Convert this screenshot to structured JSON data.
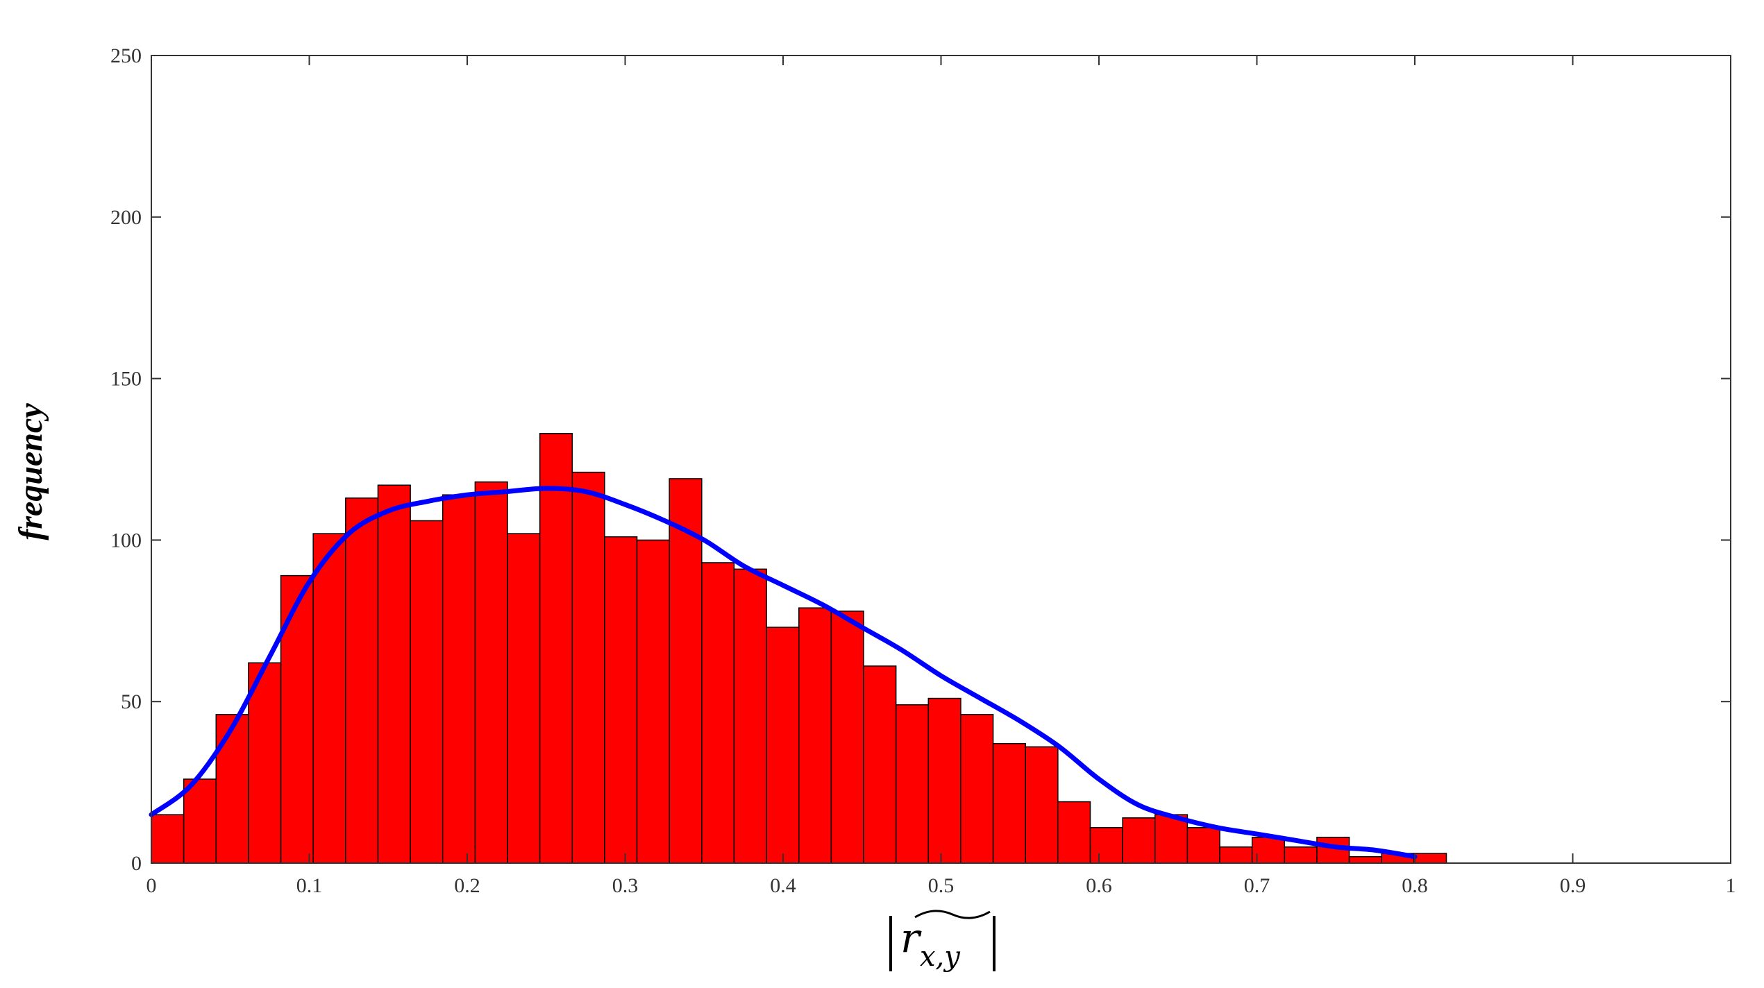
{
  "chart_data": {
    "type": "bar",
    "xlabel": "|r̃x,y|",
    "xlabel_parts": {
      "r": "r",
      "sub": "x,y"
    },
    "ylabel": "frequency",
    "xlim": [
      0,
      1
    ],
    "ylim": [
      0,
      250
    ],
    "x_ticks": [
      "0",
      "0.1",
      "0.2",
      "0.3",
      "0.4",
      "0.5",
      "0.6",
      "0.7",
      "0.8",
      "0.9",
      "1"
    ],
    "y_ticks": [
      "0",
      "50",
      "100",
      "150",
      "200",
      "250"
    ],
    "bin_width": 0.0205,
    "bin_starts": [
      0,
      0.0205,
      0.041,
      0.0615,
      0.082,
      0.1025,
      0.123,
      0.1435,
      0.164,
      0.1845,
      0.205,
      0.2255,
      0.246,
      0.2665,
      0.287,
      0.3075,
      0.328,
      0.3485,
      0.369,
      0.3895,
      0.41,
      0.4305,
      0.451,
      0.4715,
      0.492,
      0.5125,
      0.533,
      0.5535,
      0.574,
      0.5945,
      0.615,
      0.6355,
      0.656,
      0.6765,
      0.697,
      0.7175,
      0.738,
      0.7585,
      0.779,
      0.7995
    ],
    "values": [
      15,
      26,
      46,
      62,
      89,
      102,
      113,
      117,
      106,
      114,
      118,
      102,
      133,
      121,
      101,
      100,
      119,
      93,
      91,
      73,
      79,
      78,
      61,
      49,
      51,
      46,
      37,
      36,
      19,
      11,
      14,
      15,
      11,
      5,
      8,
      5,
      8,
      2,
      3,
      3
    ],
    "fit_curve": {
      "x": [
        0,
        0.025,
        0.05,
        0.075,
        0.1,
        0.125,
        0.15,
        0.175,
        0.2,
        0.225,
        0.25,
        0.275,
        0.3,
        0.325,
        0.35,
        0.375,
        0.4,
        0.425,
        0.45,
        0.475,
        0.5,
        0.525,
        0.55,
        0.575,
        0.6,
        0.625,
        0.65,
        0.675,
        0.7,
        0.725,
        0.75,
        0.775,
        0.8
      ],
      "y": [
        15,
        24,
        41,
        64,
        87,
        102,
        109,
        112,
        114,
        115,
        116,
        115,
        111,
        106,
        100,
        92,
        86,
        80,
        73,
        66,
        58,
        51,
        44,
        36,
        26,
        18,
        14,
        11,
        9,
        7,
        5,
        4,
        2
      ]
    },
    "bar_color": "#ff0000",
    "bar_edge_color": "#000000",
    "curve_color": "#0000ff",
    "grid": false
  }
}
